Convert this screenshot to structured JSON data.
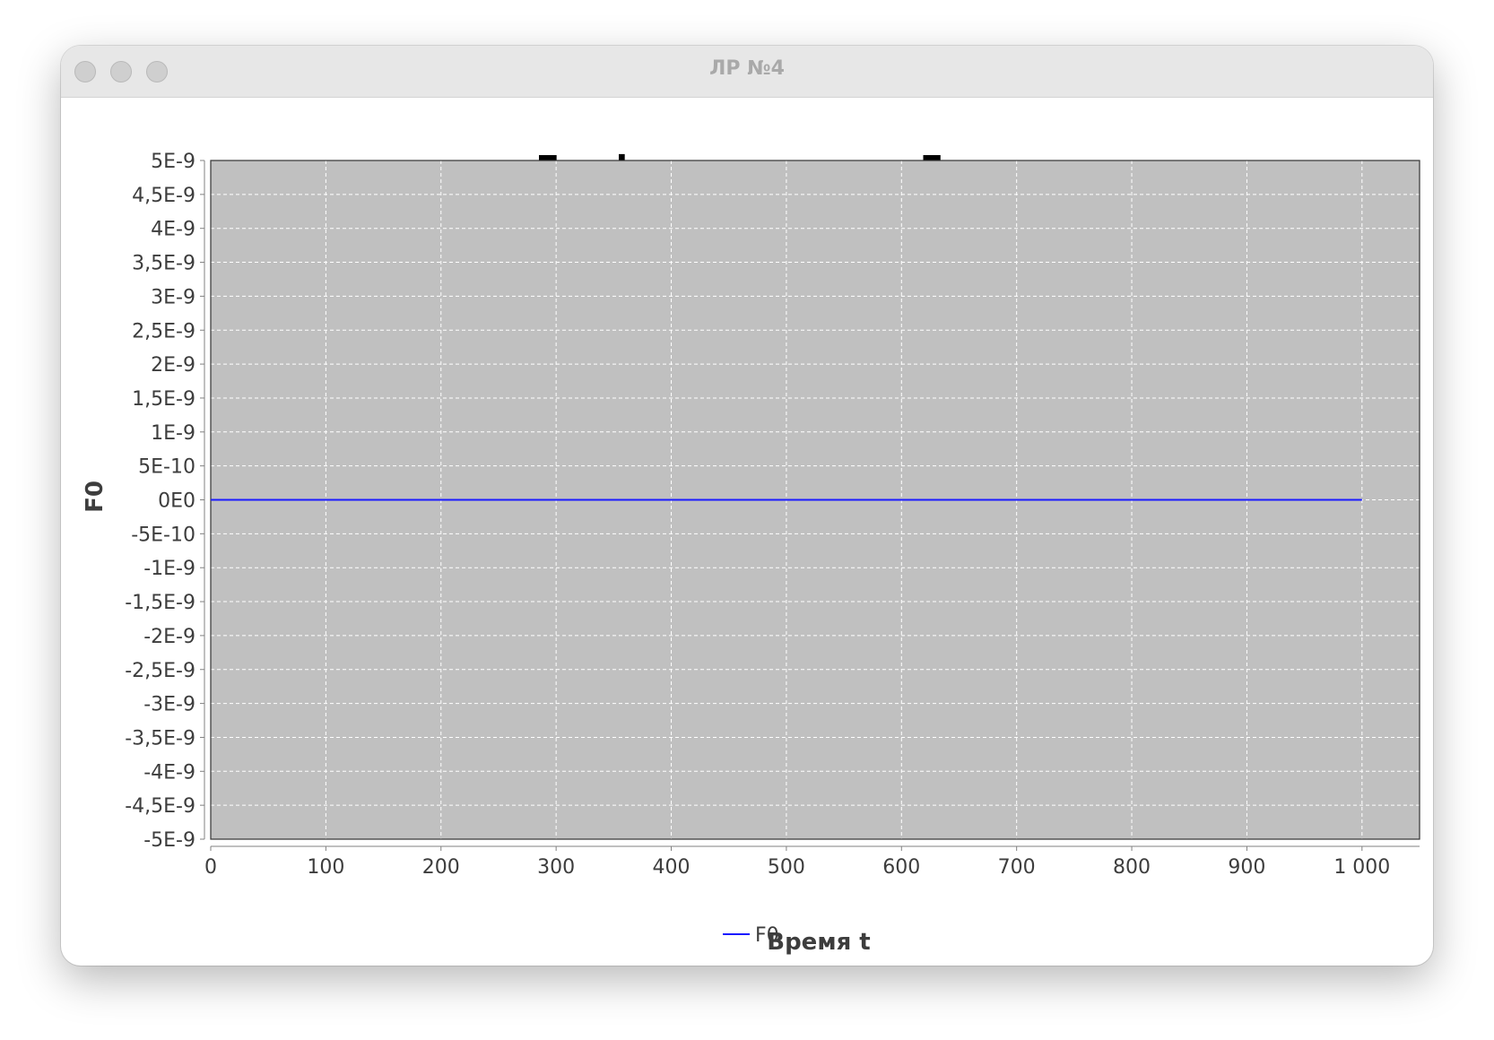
{
  "window": {
    "title": "ЛР №4"
  },
  "chart_data": {
    "type": "line",
    "title": "График изменения Fo",
    "xlabel": "Время t",
    "ylabel": "F0",
    "xlim": [
      0,
      1050
    ],
    "ylim": [
      -5e-09,
      5e-09
    ],
    "x_ticks": [
      0,
      100,
      200,
      300,
      400,
      500,
      600,
      700,
      800,
      900,
      1000
    ],
    "x_tick_labels": [
      "0",
      "100",
      "200",
      "300",
      "400",
      "500",
      "600",
      "700",
      "800",
      "900",
      "1 000"
    ],
    "y_ticks": [
      5e-09,
      4.5e-09,
      4e-09,
      3.5e-09,
      3e-09,
      2.5e-09,
      2e-09,
      1.5e-09,
      1e-09,
      5e-10,
      0,
      -5e-10,
      -1e-09,
      -1.5e-09,
      -2e-09,
      -2.5e-09,
      -3e-09,
      -3.5e-09,
      -4e-09,
      -4.5e-09,
      -5e-09
    ],
    "y_tick_labels": [
      "5E-9",
      "4,5E-9",
      "4E-9",
      "3,5E-9",
      "3E-9",
      "2,5E-9",
      "2E-9",
      "1,5E-9",
      "1E-9",
      "5E-10",
      "0E0",
      "-5E-10",
      "-1E-9",
      "-1,5E-9",
      "-2E-9",
      "-2,5E-9",
      "-3E-9",
      "-3,5E-9",
      "-4E-9",
      "-4,5E-9",
      "-5E-9"
    ],
    "grid": true,
    "legend_position": "bottom-center",
    "plot_background": "#c0c0c0",
    "series": [
      {
        "name": "F0",
        "color": "#1a1aff",
        "x": [
          0,
          1000
        ],
        "y": [
          0,
          0
        ]
      }
    ]
  }
}
